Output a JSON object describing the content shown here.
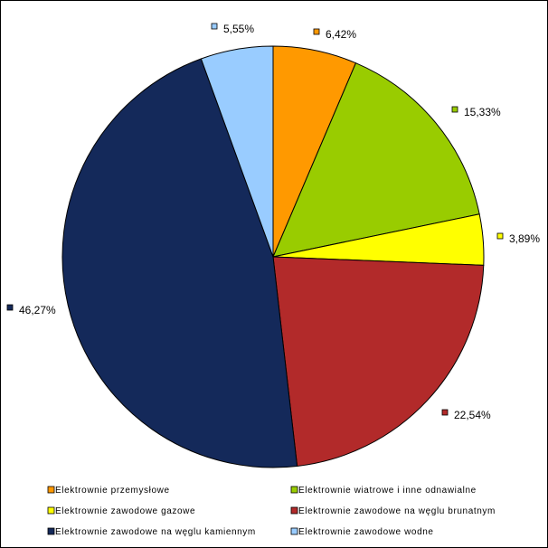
{
  "chart_data": {
    "type": "pie",
    "title": "",
    "slices": [
      {
        "label": "Elektrownie przemysłowe",
        "value": 6.42,
        "value_label": "6,42%",
        "color": "#FF9900"
      },
      {
        "label": "Elektrownie wiatrowe i inne odnawialne",
        "value": 15.33,
        "value_label": "15,33%",
        "color": "#99CC00"
      },
      {
        "label": "Elektrownie zawodowe gazowe",
        "value": 3.89,
        "value_label": "3,89%",
        "color": "#FFFF00"
      },
      {
        "label": "Elektrownie zawodowe na węglu brunatnym",
        "value": 22.54,
        "value_label": "22,54%",
        "color": "#B22A2A"
      },
      {
        "label": "Elektrownie zawodowe na węglu kamiennym",
        "value": 46.27,
        "value_label": "46,27%",
        "color": "#14295A"
      },
      {
        "label": "Elektrownie zawodowe wodne",
        "value": 5.55,
        "value_label": "5,55%",
        "color": "#99CCFF"
      }
    ],
    "legend_position": "bottom"
  }
}
